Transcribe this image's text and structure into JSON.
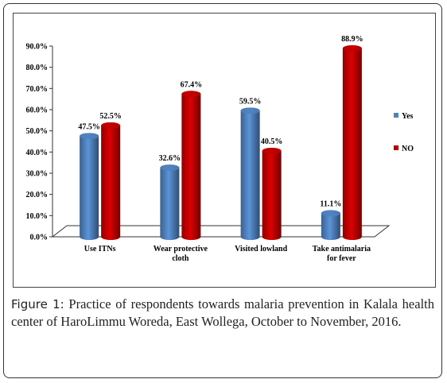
{
  "chart_data": {
    "type": "bar",
    "categories": [
      [
        "Use ITNs"
      ],
      [
        "Wear protective",
        "cloth"
      ],
      [
        "Visited lowland"
      ],
      [
        "Take antimalaria",
        "for fever"
      ]
    ],
    "series": [
      {
        "name": "Yes",
        "color": "#4f81bd",
        "values": [
          47.5,
          32.6,
          59.5,
          11.1
        ],
        "value_labels": [
          "47.5%",
          "32.6%",
          "59.5%",
          "11.1%"
        ]
      },
      {
        "name": "NO",
        "color": "#c00000",
        "values": [
          52.5,
          67.4,
          40.5,
          88.9
        ],
        "value_labels": [
          "52.5%",
          "67.4%",
          "40.5%",
          "88.9%"
        ]
      }
    ],
    "ylim": [
      0,
      90
    ],
    "yticks": [
      {
        "value": 0,
        "label": "0.0%"
      },
      {
        "value": 10,
        "label": "10.0%"
      },
      {
        "value": 20,
        "label": "20.0%"
      },
      {
        "value": 30,
        "label": "30.0%"
      },
      {
        "value": 40,
        "label": "40.0%"
      },
      {
        "value": 50,
        "label": "50.0%"
      },
      {
        "value": 60,
        "label": "60.0%"
      },
      {
        "value": 70,
        "label": "70.0%"
      },
      {
        "value": 80,
        "label": "80.0%"
      },
      {
        "value": 90,
        "label": "90.0%"
      }
    ],
    "legend": "right"
  },
  "caption": {
    "label": "Figure 1:",
    "text": "Practice of respondents towards malaria prevention in Kalala health center of HaroLimmu Woreda, East Wollega, October to November, 2016."
  }
}
